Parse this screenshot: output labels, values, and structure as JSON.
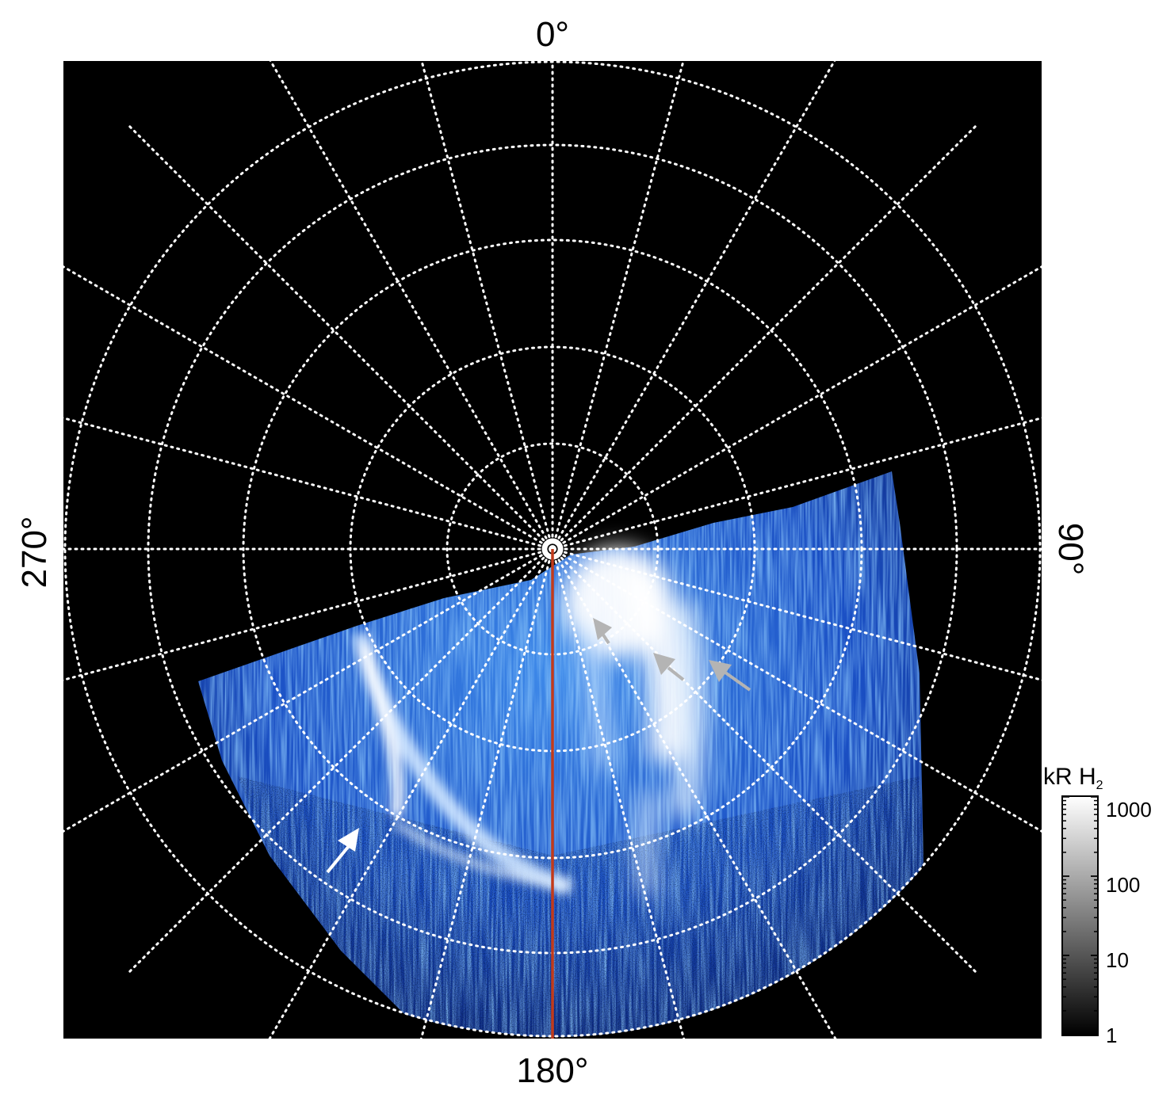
{
  "figure": {
    "background_color": "#000000",
    "grid_color": "#ffffff",
    "aurora_colors": [
      "#0a1f6b",
      "#1a4fc4",
      "#3f8bea",
      "#9fd0ff",
      "#ffffff"
    ],
    "meridian_line_color": "#c23a1a"
  },
  "labels": {
    "top": "0°",
    "right": "90°",
    "bottom": "180°",
    "left": "270°"
  },
  "colorbar": {
    "title_main": "kR H",
    "title_sub": "2",
    "ticks": [
      "1000",
      "100",
      "10",
      "1"
    ],
    "scale": "log"
  },
  "annotations": {
    "arrows": [
      {
        "name": "white-arrow",
        "color": "#ffffff"
      },
      {
        "name": "gray-arrow-1",
        "color": "#b4b4b4"
      },
      {
        "name": "gray-arrow-2",
        "color": "#b4b4b4"
      },
      {
        "name": "gray-arrow-3",
        "color": "#b4b4b4"
      }
    ]
  }
}
